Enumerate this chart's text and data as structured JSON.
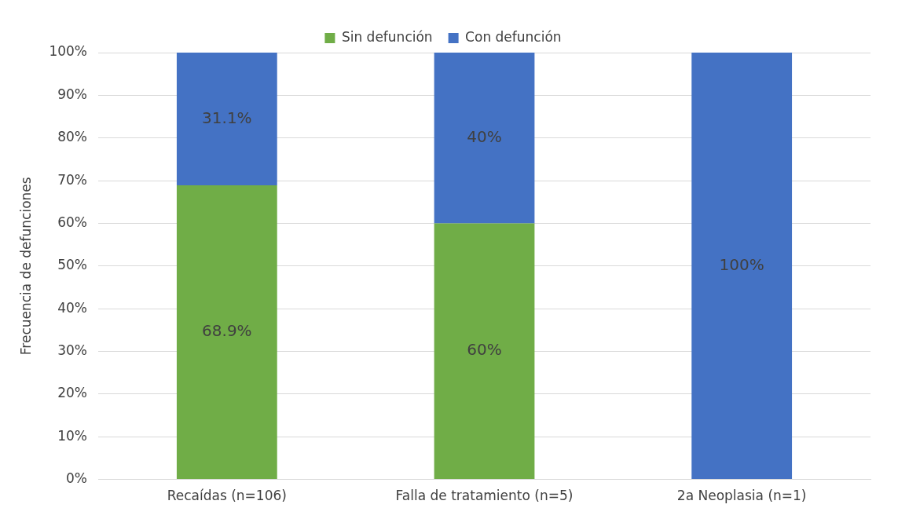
{
  "chart_data": {
    "type": "bar",
    "stacked": true,
    "ylabel": "Frecuencia de defunciones",
    "categories": [
      "Recaídas (n=106)",
      "Falla de tratamiento (n=5)",
      "2a Neoplasia (n=1)"
    ],
    "series": [
      {
        "name": "Sin defunción",
        "color": "#70ad47",
        "values": [
          68.9,
          60,
          0
        ],
        "value_labels": [
          "68.9%",
          "60%",
          null
        ]
      },
      {
        "name": "Con defunción",
        "color": "#4472c4",
        "values": [
          31.1,
          40,
          100
        ],
        "value_labels": [
          "31.1%",
          "40%",
          "100%"
        ]
      }
    ],
    "ylim": [
      0,
      100
    ],
    "yticks": [
      {
        "value": 0,
        "label": "0%"
      },
      {
        "value": 10,
        "label": "10%"
      },
      {
        "value": 20,
        "label": "20%"
      },
      {
        "value": 30,
        "label": "30%"
      },
      {
        "value": 40,
        "label": "40%"
      },
      {
        "value": 50,
        "label": "50%"
      },
      {
        "value": 60,
        "label": "60%"
      },
      {
        "value": 70,
        "label": "70%"
      },
      {
        "value": 80,
        "label": "80%"
      },
      {
        "value": 90,
        "label": "90%"
      },
      {
        "value": 100,
        "label": "100%"
      }
    ],
    "grid": "y",
    "legend": "top"
  }
}
